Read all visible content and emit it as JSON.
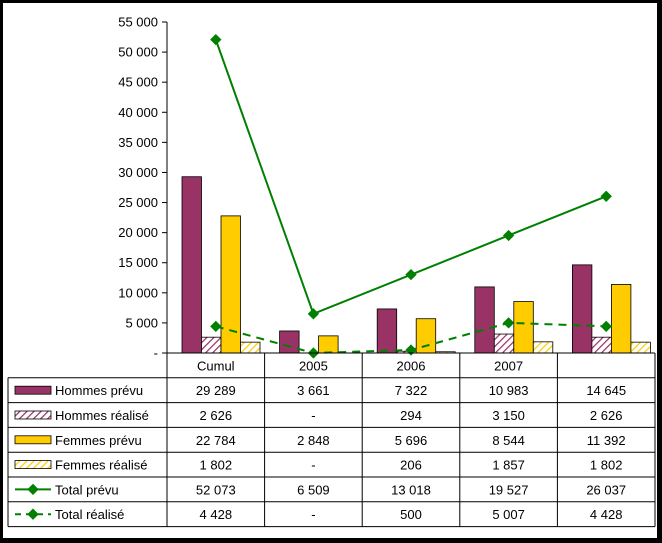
{
  "chart_data": {
    "type": "bar",
    "title": "",
    "xlabel": "",
    "ylabel": "",
    "ylim": [
      0,
      55000
    ],
    "yticks": [
      0,
      5000,
      10000,
      15000,
      20000,
      25000,
      30000,
      35000,
      40000,
      45000,
      50000,
      55000
    ],
    "ytick_labels": [
      "-",
      "5 000",
      "10 000",
      "15 000",
      "20 000",
      "25 000",
      "30 000",
      "35 000",
      "40 000",
      "45 000",
      "50 000",
      "55 000"
    ],
    "categories": [
      "Cumul",
      "2005",
      "2006",
      "2007",
      ""
    ],
    "grid": false,
    "legend": "data table below plot",
    "series": [
      {
        "name": "Hommes prévu",
        "kind": "bar",
        "style": "solid",
        "color": "#993366",
        "values": [
          29289,
          3661,
          7322,
          10983,
          14645
        ],
        "labels": [
          "29 289",
          "3 661",
          "7 322",
          "10 983",
          "14 645"
        ]
      },
      {
        "name": "Hommes réalisé",
        "kind": "bar",
        "style": "hatch",
        "color": "#993366",
        "values": [
          2626,
          0,
          294,
          3150,
          2626
        ],
        "labels": [
          "2 626",
          "-",
          "294",
          "3 150",
          "2 626"
        ]
      },
      {
        "name": "Femmes prévu",
        "kind": "bar",
        "style": "solid",
        "color": "#FFCC00",
        "values": [
          22784,
          2848,
          5696,
          8544,
          11392
        ],
        "labels": [
          "22 784",
          "2 848",
          "5 696",
          "8 544",
          "11 392"
        ]
      },
      {
        "name": "Femmes réalisé",
        "kind": "bar",
        "style": "hatch",
        "color": "#FFCC00",
        "values": [
          1802,
          0,
          206,
          1857,
          1802
        ],
        "labels": [
          "1 802",
          "-",
          "206",
          "1 857",
          "1 802"
        ]
      },
      {
        "name": "Total prévu",
        "kind": "line",
        "style": "solid",
        "color": "#008000",
        "values": [
          52073,
          6509,
          13018,
          19527,
          26037
        ],
        "labels": [
          "52 073",
          "6 509",
          "13 018",
          "19 527",
          "26 037"
        ]
      },
      {
        "name": "Total réalisé",
        "kind": "line",
        "style": "dashed",
        "color": "#008000",
        "values": [
          4428,
          0,
          500,
          5007,
          4428
        ],
        "labels": [
          "4 428",
          "-",
          "500",
          "5 007",
          "4 428"
        ]
      }
    ]
  }
}
